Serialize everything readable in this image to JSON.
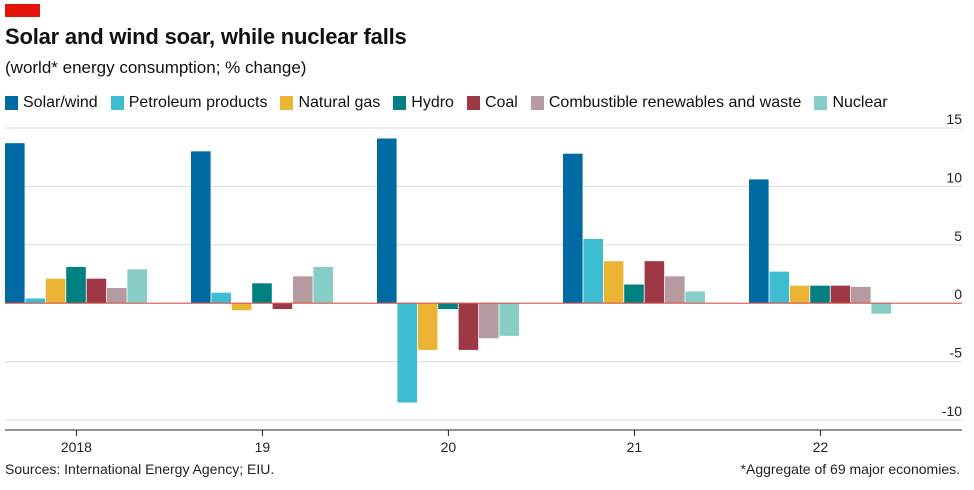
{
  "header": {
    "title": "Solar and wind soar, while nuclear falls",
    "subtitle": "(world* energy consumption; % change)"
  },
  "footer": {
    "sources": "Sources: International Energy Agency; EIU.",
    "note": "*Aggregate of 69 major economies."
  },
  "colors": {
    "accent": "#e3120b",
    "zero_line": "#d9534f"
  },
  "chart_data": {
    "type": "bar",
    "title": "Solar and wind soar, while nuclear falls",
    "subtitle": "(world* energy consumption; % change)",
    "categories": [
      "2018",
      "19",
      "20",
      "21",
      "22"
    ],
    "ylim": [
      -10,
      15
    ],
    "yticks": [
      15,
      10,
      5,
      0,
      -5,
      -10
    ],
    "grid": true,
    "legend_position": "top",
    "series": [
      {
        "name": "Solar/wind",
        "color": "#006ba2",
        "values": [
          13.7,
          13.0,
          14.1,
          12.8,
          10.6
        ]
      },
      {
        "name": "Petroleum products",
        "color": "#3ebcd2",
        "values": [
          0.4,
          0.9,
          -8.5,
          5.5,
          2.7
        ]
      },
      {
        "name": "Natural gas",
        "color": "#ebb434",
        "values": [
          2.1,
          -0.6,
          -4.0,
          3.6,
          1.5
        ]
      },
      {
        "name": "Hydro",
        "color": "#008080",
        "values": [
          3.1,
          1.7,
          -0.5,
          1.6,
          1.5
        ]
      },
      {
        "name": "Coal",
        "color": "#9e3847",
        "values": [
          2.1,
          -0.5,
          -4.0,
          3.6,
          1.5
        ]
      },
      {
        "name": "Combustible renewables and waste",
        "color": "#b59a9f",
        "values": [
          1.3,
          2.3,
          -3.0,
          2.3,
          1.4
        ]
      },
      {
        "name": "Nuclear",
        "color": "#86cec5",
        "values": [
          2.9,
          3.1,
          -2.8,
          1.0,
          -0.9
        ]
      }
    ]
  }
}
